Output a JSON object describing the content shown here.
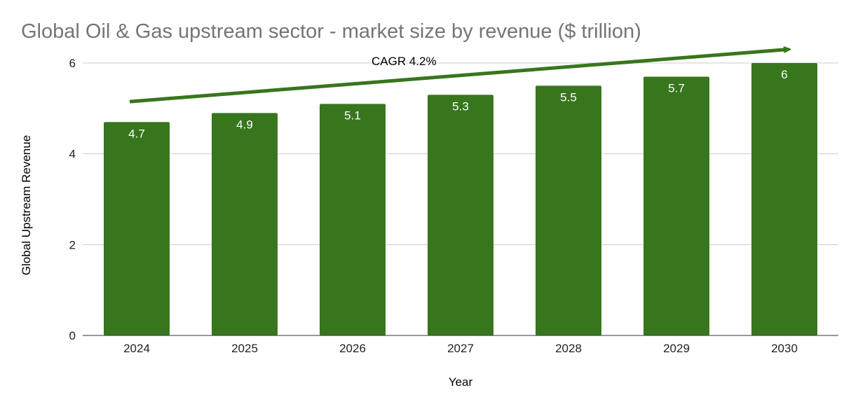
{
  "chart_data": {
    "type": "bar",
    "title": "Global Oil & Gas upstream sector - market size by revenue ($ trillion)",
    "xlabel": "Year",
    "ylabel": "Global Upstream Revenue",
    "categories": [
      "2024",
      "2025",
      "2026",
      "2027",
      "2028",
      "2029",
      "2030"
    ],
    "series": [
      {
        "values": [
          4.7,
          4.9,
          5.1,
          5.3,
          5.5,
          5.7,
          6
        ]
      }
    ],
    "data_labels": [
      "4.7",
      "4.9",
      "5.1",
      "5.3",
      "5.5",
      "5.7",
      "6"
    ],
    "ylim": [
      0,
      6
    ],
    "yticks": [
      0,
      2,
      4,
      6
    ],
    "grid": true,
    "legend": "none",
    "annotation": {
      "text": "CAGR 4.2%",
      "arrow_from": {
        "category": "2024",
        "value": 5.15
      },
      "arrow_to": {
        "category": "2030",
        "value": 6.3
      }
    },
    "colors": {
      "bar": "#38761d",
      "arrow": "#38761d",
      "gridline": "#cccccc",
      "title": "#757575"
    }
  }
}
